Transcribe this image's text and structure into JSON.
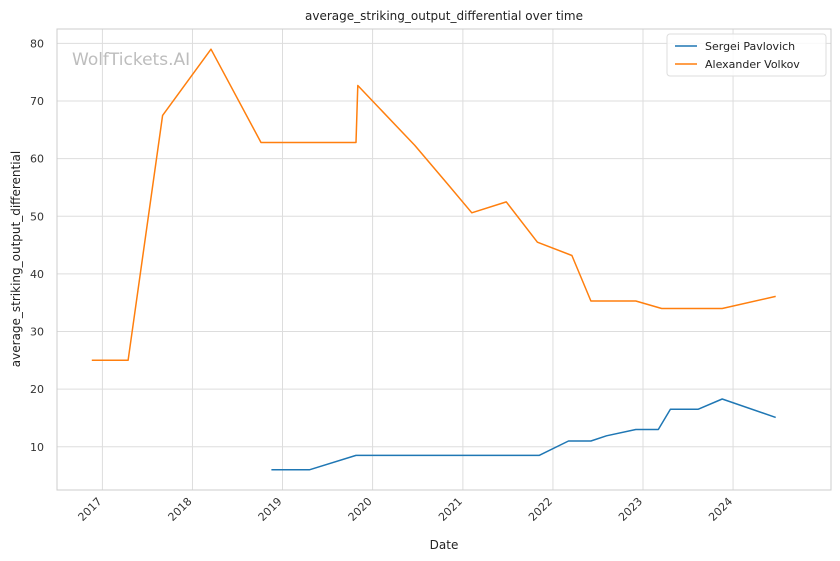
{
  "chart_data": {
    "type": "line",
    "title": "average_striking_output_differential over time",
    "xlabel": "Date",
    "ylabel": "average_striking_output_differential",
    "watermark": "WolfTickets.AI",
    "xlim": [
      "2016-07-01",
      "2025-02-01"
    ],
    "ylim": [
      2.5,
      82.5
    ],
    "x_ticks": [
      "2017-01-01",
      "2018-01-01",
      "2019-01-01",
      "2020-01-01",
      "2021-01-01",
      "2022-01-01",
      "2023-01-01",
      "2024-01-01"
    ],
    "x_tick_labels": [
      "2017",
      "2018",
      "2019",
      "2020",
      "2021",
      "2022",
      "2023",
      "2024"
    ],
    "y_ticks": [
      10,
      20,
      30,
      40,
      50,
      60,
      70,
      80
    ],
    "y_tick_labels": [
      "10",
      "20",
      "30",
      "40",
      "50",
      "60",
      "70",
      "80"
    ],
    "grid": true,
    "legend_position": "top-right",
    "series": [
      {
        "name": "Sergei Pavlovich",
        "color": "#1f77b4",
        "x": [
          "2018-11-17",
          "2019-04-20",
          "2019-10-26",
          "2020-02-22",
          "2020-06-27",
          "2020-11-21",
          "2021-03-06",
          "2021-07-10",
          "2021-11-06",
          "2022-03-05",
          "2022-06-04",
          "2022-08-06",
          "2022-12-03",
          "2023-03-04",
          "2023-04-22",
          "2023-08-12",
          "2023-11-18",
          "2024-06-22"
        ],
        "y": [
          6.0,
          6.0,
          8.5,
          8.5,
          8.5,
          8.5,
          8.5,
          8.5,
          8.5,
          11.0,
          11.0,
          11.9,
          13.0,
          13.0,
          16.5,
          16.5,
          18.3,
          15.1
        ]
      },
      {
        "name": "Alexander Volkov",
        "color": "#ff7f0e",
        "x": [
          "2016-11-19",
          "2017-04-15",
          "2017-09-02",
          "2018-03-17",
          "2018-10-06",
          "2019-01-19",
          "2019-06-01",
          "2019-10-26",
          "2019-11-02",
          "2020-06-20",
          "2020-10-31",
          "2021-02-06",
          "2021-06-26",
          "2021-10-30",
          "2022-03-19",
          "2022-06-04",
          "2022-12-03",
          "2023-03-18",
          "2023-07-15",
          "2023-11-18",
          "2024-06-22"
        ],
        "y": [
          25.0,
          25.0,
          67.5,
          79.0,
          62.8,
          62.8,
          62.8,
          62.8,
          72.7,
          62.3,
          55.6,
          50.6,
          52.5,
          45.5,
          43.2,
          35.3,
          35.3,
          34.0,
          34.0,
          34.0,
          36.1
        ]
      }
    ]
  }
}
